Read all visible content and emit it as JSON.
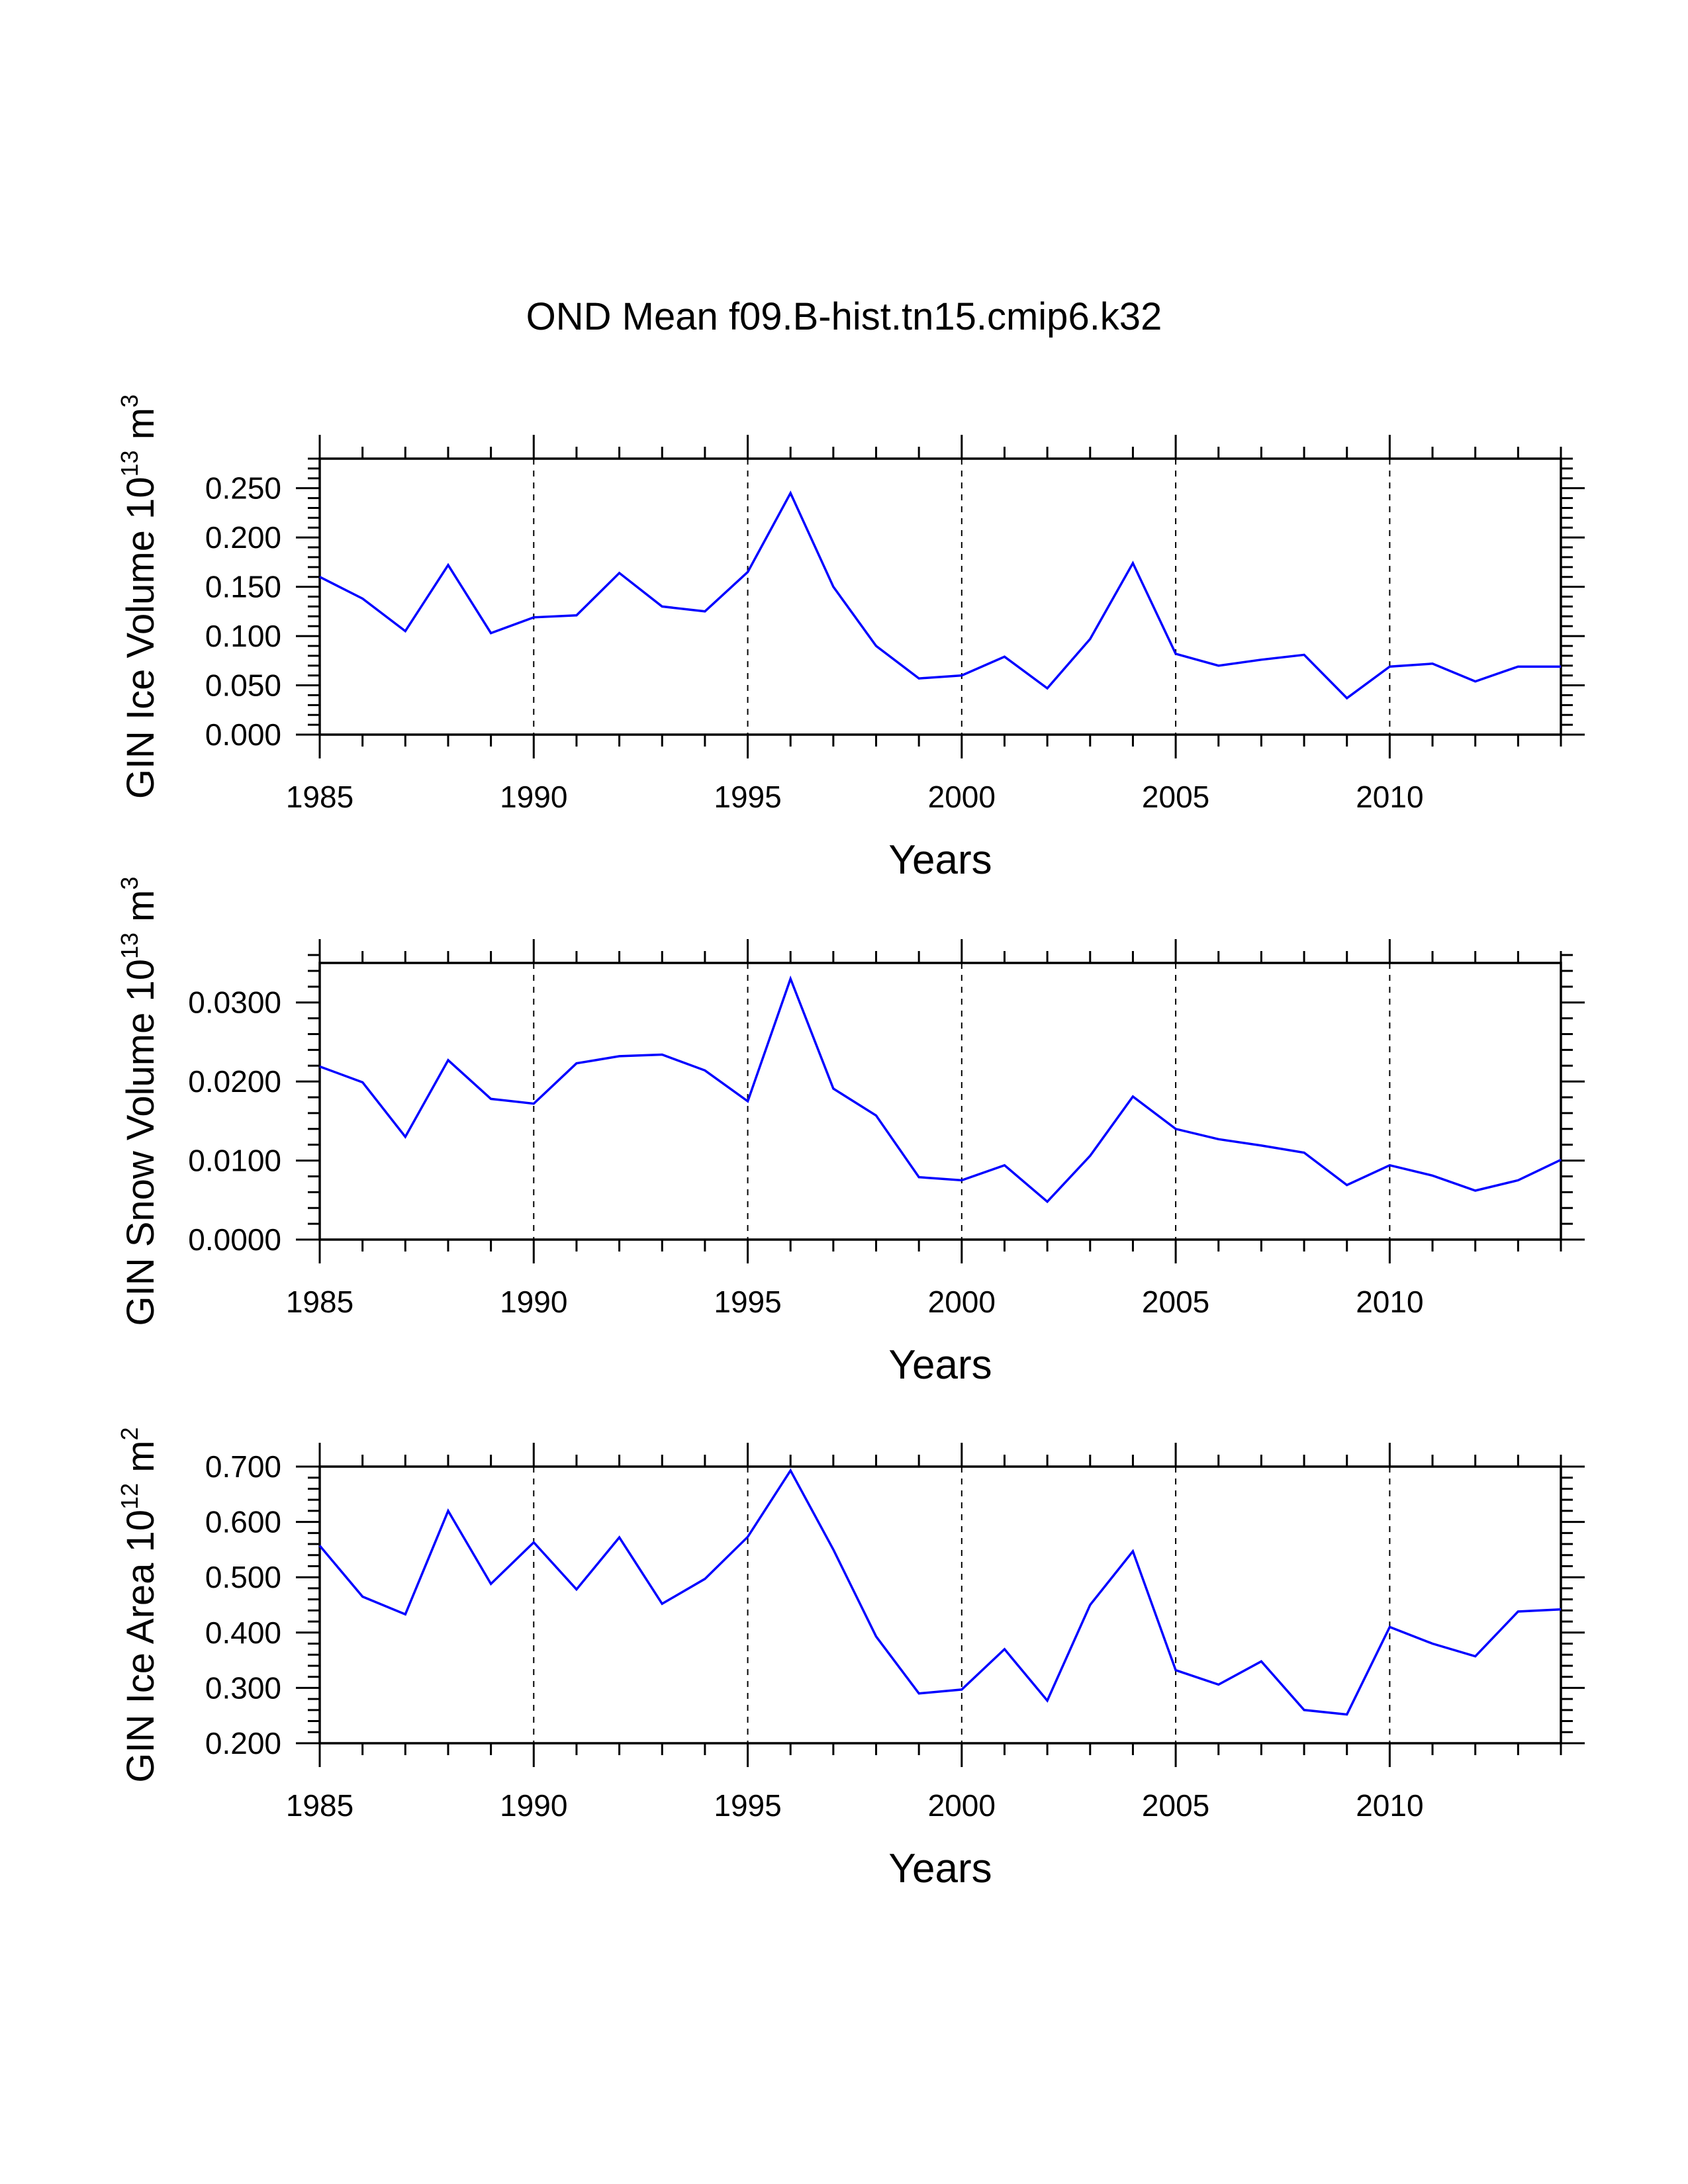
{
  "colors": {
    "series": "#0000ff",
    "axis": "#000000",
    "background": "#ffffff"
  },
  "title": "OND Mean f09.B-hist.tn15.cmip6.k32",
  "chart_data": [
    {
      "type": "line",
      "ylabel": {
        "text": "GIN Ice Volume 10",
        "exponent": "13",
        "unit": "m",
        "unit_exponent": "3"
      },
      "xlabel": "Years",
      "xlim": [
        1985,
        2014
      ],
      "ylim": [
        0.0,
        0.28
      ],
      "xticks": [
        1985,
        1990,
        1995,
        2000,
        2005,
        2010
      ],
      "xtick_labels": [
        "1985",
        "1990",
        "1995",
        "2000",
        "2005",
        "2010"
      ],
      "yticks": [
        0.0,
        0.05,
        0.1,
        0.15,
        0.2,
        0.25
      ],
      "ytick_labels": [
        "0.000",
        "0.050",
        "0.100",
        "0.150",
        "0.200",
        "0.250"
      ],
      "grid": "dashed vertical at major x ticks",
      "x": [
        1985,
        1986,
        1987,
        1988,
        1989,
        1990,
        1991,
        1992,
        1993,
        1994,
        1995,
        1996,
        1997,
        1998,
        1999,
        2000,
        2001,
        2002,
        2003,
        2004,
        2005,
        2006,
        2007,
        2008,
        2009,
        2010,
        2011,
        2012,
        2013,
        2014
      ],
      "values": [
        0.16,
        0.138,
        0.105,
        0.172,
        0.103,
        0.119,
        0.121,
        0.164,
        0.13,
        0.125,
        0.165,
        0.245,
        0.15,
        0.09,
        0.057,
        0.06,
        0.079,
        0.047,
        0.097,
        0.174,
        0.082,
        0.07,
        0.076,
        0.081,
        0.037,
        0.069,
        0.072,
        0.054,
        0.069,
        0.069
      ]
    },
    {
      "type": "line",
      "ylabel": {
        "text": "GIN Snow Volume 10",
        "exponent": "13",
        "unit": "m",
        "unit_exponent": "3"
      },
      "xlabel": "Years",
      "xlim": [
        1985,
        2014
      ],
      "ylim": [
        0.0,
        0.035
      ],
      "xticks": [
        1985,
        1990,
        1995,
        2000,
        2005,
        2010
      ],
      "xtick_labels": [
        "1985",
        "1990",
        "1995",
        "2000",
        "2005",
        "2010"
      ],
      "yticks": [
        0.0,
        0.01,
        0.02,
        0.03
      ],
      "ytick_labels": [
        "0.0000",
        "0.0100",
        "0.0200",
        "0.0300"
      ],
      "grid": "dashed vertical at major x ticks",
      "x": [
        1985,
        1986,
        1987,
        1988,
        1989,
        1990,
        1991,
        1992,
        1993,
        1994,
        1995,
        1996,
        1997,
        1998,
        1999,
        2000,
        2001,
        2002,
        2003,
        2004,
        2005,
        2006,
        2007,
        2008,
        2009,
        2010,
        2011,
        2012,
        2013,
        2014
      ],
      "values": [
        0.0219,
        0.0199,
        0.013,
        0.0227,
        0.0178,
        0.0172,
        0.0223,
        0.0232,
        0.0234,
        0.0214,
        0.0175,
        0.033,
        0.0191,
        0.0157,
        0.0079,
        0.0075,
        0.0094,
        0.0048,
        0.0106,
        0.0181,
        0.014,
        0.0127,
        0.0119,
        0.011,
        0.0069,
        0.0094,
        0.0081,
        0.0062,
        0.0075,
        0.0101
      ]
    },
    {
      "type": "line",
      "ylabel": {
        "text": "GIN Ice Area 10",
        "exponent": "12",
        "unit": "m",
        "unit_exponent": "2"
      },
      "xlabel": "Years",
      "xlim": [
        1985,
        2014
      ],
      "ylim": [
        0.2,
        0.7
      ],
      "xticks": [
        1985,
        1990,
        1995,
        2000,
        2005,
        2010
      ],
      "xtick_labels": [
        "1985",
        "1990",
        "1995",
        "2000",
        "2005",
        "2010"
      ],
      "yticks": [
        0.2,
        0.3,
        0.4,
        0.5,
        0.6,
        0.7
      ],
      "ytick_labels": [
        "0.200",
        "0.300",
        "0.400",
        "0.500",
        "0.600",
        "0.700"
      ],
      "grid": "dashed vertical at major x ticks",
      "x": [
        1985,
        1986,
        1987,
        1988,
        1989,
        1990,
        1991,
        1992,
        1993,
        1994,
        1995,
        1996,
        1997,
        1998,
        1999,
        2000,
        2001,
        2002,
        2003,
        2004,
        2005,
        2006,
        2007,
        2008,
        2009,
        2010,
        2011,
        2012,
        2013,
        2014
      ],
      "values": [
        0.557,
        0.465,
        0.433,
        0.62,
        0.488,
        0.563,
        0.478,
        0.572,
        0.452,
        0.497,
        0.573,
        0.693,
        0.55,
        0.393,
        0.29,
        0.297,
        0.37,
        0.277,
        0.45,
        0.547,
        0.332,
        0.306,
        0.348,
        0.26,
        0.252,
        0.41,
        0.38,
        0.357,
        0.438,
        0.442
      ]
    }
  ]
}
